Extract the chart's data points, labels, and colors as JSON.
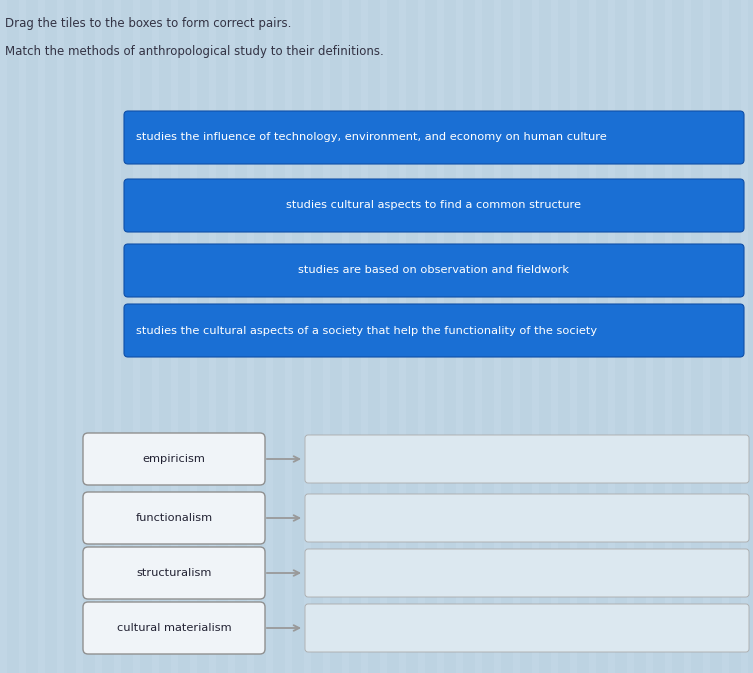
{
  "title1": "Drag the tiles to the boxes to form correct pairs.",
  "title2": "Match the methods of anthropological study to their definitions.",
  "background_color": "#bdd3e2",
  "stripe_color": "#c5dae8",
  "blue_box_color": "#1a6fd4",
  "blue_box_edge_color": "#1050a8",
  "blue_box_text_color": "#ffffff",
  "white_box_color": "#f0f4f8",
  "white_box_border_color": "#909090",
  "definitions": [
    "studies the influence of technology, environment, and economy on human culture",
    "studies cultural aspects to find a common structure",
    "studies are based on observation and fieldwork",
    "studies the cultural aspects of a society that help the functionality of the society"
  ],
  "terms": [
    "empiricism",
    "functionalism",
    "structuralism",
    "cultural materialism"
  ],
  "title_color": "#333344",
  "arrow_color": "#999999",
  "empty_box_color": "#dce8f0",
  "empty_box_border": "#aaaaaa"
}
